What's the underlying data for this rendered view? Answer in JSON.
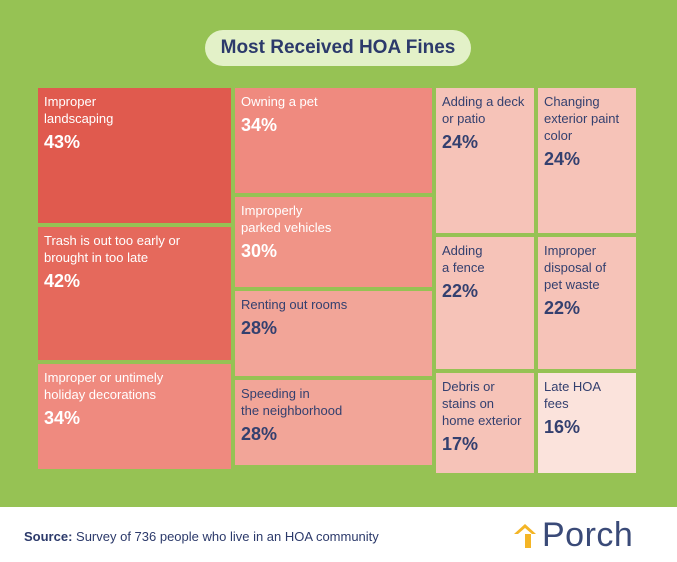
{
  "title": "Most Received HOA Fines",
  "source": {
    "prefix": "Source:",
    "text": " Survey of 736 people who live in an HOA community"
  },
  "brand": {
    "name": "Porch",
    "logo_icon": "porch-roof-icon"
  },
  "colors": {
    "background": "#96c254",
    "title_pill": "#e3f1c8",
    "scale": [
      "#e05a4e",
      "#e16a5e",
      "#ef8a7f",
      "#f2a598",
      "#f6c3b8",
      "#fbe3dc"
    ]
  },
  "chart_data": {
    "type": "treemap",
    "title": "Most Received HOA Fines",
    "unit": "%",
    "items": [
      {
        "label": "Improper landscaping",
        "value": 43,
        "display": "43%"
      },
      {
        "label": "Trash is out too early or brought in too late",
        "value": 42,
        "display": "42%"
      },
      {
        "label": "Improper or untimely holiday decorations",
        "value": 34,
        "display": "34%"
      },
      {
        "label": "Owning a pet",
        "value": 34,
        "display": "34%"
      },
      {
        "label": "Improperly parked vehicles",
        "value": 30,
        "display": "30%"
      },
      {
        "label": "Renting out rooms",
        "value": 28,
        "display": "28%"
      },
      {
        "label": "Speeding in the neighborhood",
        "value": 28,
        "display": "28%"
      },
      {
        "label": "Adding a deck or patio",
        "value": 24,
        "display": "24%"
      },
      {
        "label": "Changing exterior paint color",
        "value": 24,
        "display": "24%"
      },
      {
        "label": "Adding a fence",
        "value": 22,
        "display": "22%"
      },
      {
        "label": "Improper disposal of pet waste",
        "value": 22,
        "display": "22%"
      },
      {
        "label": "Debris or stains on home exterior",
        "value": 17,
        "display": "17%"
      },
      {
        "label": "Late HOA fees",
        "value": 16,
        "display": "16%"
      }
    ]
  }
}
